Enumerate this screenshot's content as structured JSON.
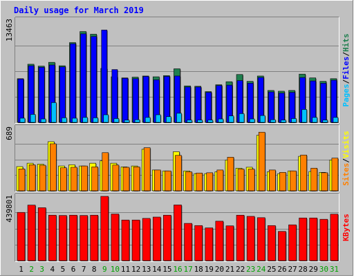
{
  "chart_data": {
    "type": "bar",
    "title": "Daily usage for March 2019",
    "categories": [
      "1",
      "2",
      "3",
      "4",
      "5",
      "6",
      "7",
      "8",
      "9",
      "10",
      "11",
      "12",
      "13",
      "14",
      "15",
      "16",
      "17",
      "18",
      "19",
      "20",
      "21",
      "22",
      "23",
      "24",
      "25",
      "26",
      "27",
      "28",
      "29",
      "30",
      "31"
    ],
    "weekend_days": [
      "2",
      "3",
      "9",
      "10",
      "16",
      "17",
      "23",
      "24",
      "30",
      "31"
    ],
    "panels": [
      {
        "id": "top",
        "max_label": "13463",
        "ylim": [
          0,
          13463
        ],
        "legend": [
          "Pages",
          "Files",
          "Hits"
        ],
        "series": [
          {
            "name": "Hits",
            "color": "#1f7f4f",
            "values": [
              5750,
              7650,
              7400,
              7900,
              7450,
              10500,
              11950,
              11600,
              7100,
              6000,
              5850,
              5950,
              6100,
              6000,
              6150,
              7050,
              4800,
              4750,
              4050,
              4950,
              5350,
              6300,
              5400,
              6100,
              4200,
              4100,
              4200,
              6350,
              5850,
              5400,
              5750
            ]
          },
          {
            "name": "Files",
            "color": "#0000ff",
            "values": [
              5700,
              7450,
              7250,
              7550,
              7300,
              10350,
              11650,
              11300,
              12150,
              6950,
              5800,
              5750,
              6050,
              5600,
              6050,
              6100,
              4650,
              4650,
              3950,
              4850,
              4900,
              5500,
              5150,
              5900,
              4000,
              3850,
              3950,
              5900,
              5450,
              5150,
              5550
            ]
          },
          {
            "name": "Pages",
            "color": "#00c0ff",
            "values": [
              550,
              1050,
              450,
              2600,
              600,
              550,
              650,
              600,
              1000,
              500,
              300,
              350,
              650,
              1000,
              750,
              1200,
              300,
              300,
              300,
              450,
              850,
              1150,
              450,
              900,
              350,
              300,
              500,
              1700,
              650,
              300,
              650
            ]
          }
        ]
      },
      {
        "id": "middle",
        "max_label": "689",
        "ylim": [
          0,
          689
        ],
        "legend": [
          "Sites",
          "Visits"
        ],
        "series": [
          {
            "name": "Visits",
            "color": "#ffff00",
            "values": [
              265,
              302,
              292,
              538,
              272,
              285,
              272,
              302,
              328,
              302,
              262,
              272,
              455,
              228,
              218,
              428,
              218,
              188,
              188,
              208,
              338,
              248,
              258,
              608,
              208,
              188,
              218,
              378,
              212,
              202,
              338
            ]
          },
          {
            "name": "Sites",
            "color": "#ff8000",
            "values": [
              240,
              285,
              280,
              515,
              252,
              258,
              272,
              262,
              418,
              282,
              258,
              262,
              472,
              228,
              218,
              388,
              208,
              195,
              198,
              228,
              368,
              238,
              238,
              642,
              228,
              202,
              218,
              392,
              248,
              198,
              358
            ]
          }
        ]
      },
      {
        "id": "bottom",
        "max_label": "439801",
        "ylim": [
          0,
          439801
        ],
        "legend": [
          "KBytes"
        ],
        "series": [
          {
            "name": "KBytes",
            "color": "#ff0000",
            "values": [
              330000,
              380000,
              362000,
              311000,
              309000,
              311000,
              309000,
              311000,
              439801,
              319000,
              278000,
              278000,
              289000,
              298000,
              311000,
              381000,
              255000,
              240000,
              224000,
              270000,
              238000,
              311000,
              303000,
              294000,
              240000,
              200000,
              245000,
              292000,
              292000,
              283000,
              318000
            ]
          }
        ]
      }
    ],
    "colors": {
      "background": "#c0c0c0",
      "frame_light": "#ffffff",
      "frame_dark": "#808080",
      "title": "#0000ff",
      "weekday_label": "#000000",
      "weekend_label": "#00a000",
      "bar_shadow": "#000000"
    },
    "grid": true
  }
}
